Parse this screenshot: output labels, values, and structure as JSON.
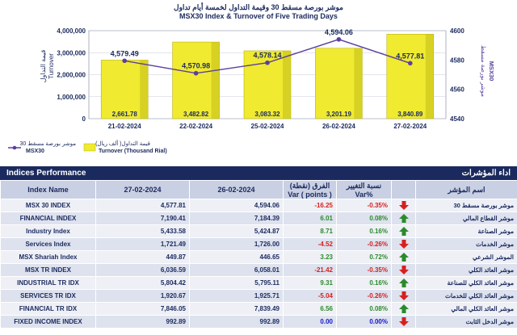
{
  "chart_data": {
    "type": "bar+line",
    "title_ar": "موشر بورصة مسقط 30 وقيمة التداول لخمسة أيام تداول",
    "title": "MSX30 Index & Turnover of Five Trading Days",
    "categories": [
      "21-02-2024",
      "22-02-2024",
      "25-02-2024",
      "26-02-2024",
      "27-02-2024"
    ],
    "bar_series": {
      "name_ar": "قيمة التداول( ألف ريال)",
      "name": "Turnover (Thousand Rial)",
      "values": [
        2661.78,
        3482.82,
        3083.32,
        3201.19,
        3840.89
      ],
      "labels": [
        "2,661.78",
        "3,482.82",
        "3,083.32",
        "3,201.19",
        "3,840.89"
      ],
      "color": "#f0ea30"
    },
    "line_series": {
      "name_ar": "موشر بورصة مسقط 30",
      "name": "MSX30",
      "values": [
        4579.49,
        4570.98,
        4578.14,
        4594.06,
        4577.81
      ],
      "labels": [
        "4,579.49",
        "4,570.98",
        "4,578.14",
        "4,594.06",
        "4,577.81"
      ],
      "color": "#5b3f9e"
    },
    "left_axis": {
      "label_ar": "قيمة التداول",
      "label": "Turnover",
      "range": [
        0,
        4000000
      ],
      "ticks": [
        0,
        1000000,
        2000000,
        3000000,
        4000000
      ],
      "tick_labels": [
        "0",
        "1,000,000",
        "2,000,000",
        "3,000,000",
        "4,000,000"
      ]
    },
    "right_axis": {
      "label_ar": "موشر بورصة مسقط",
      "label": "MSX30",
      "range": [
        4540,
        4600
      ],
      "ticks": [
        4540,
        4560,
        4580,
        4600
      ],
      "tick_labels": [
        "4540",
        "4560",
        "4580",
        "4600"
      ]
    },
    "grid": true,
    "legend": "bottom-left"
  },
  "table": {
    "title_en": "Indices Performance",
    "title_ar": "اداء المؤشرات",
    "headers": {
      "name": "Index Name",
      "date1": "27-02-2024",
      "date2": "26-02-2024",
      "var_ar": "الفرق (نقطة)",
      "var_en": "Var ( points )",
      "pct_ar": "نسبة التغيير",
      "pct_en": "Var%",
      "name_ar": "اسم المؤشر"
    },
    "rows": [
      {
        "name": "MSX 30 INDEX",
        "v1": "4,577.81",
        "v2": "4,594.06",
        "var": "-16.25",
        "pct": "-0.35%",
        "dir": "down",
        "name_ar": "موشر بورصة مسقط 30"
      },
      {
        "name": "FINANCIAL INDEX",
        "v1": "7,190.41",
        "v2": "7,184.39",
        "var": "6.01",
        "pct": "0.08%",
        "dir": "up",
        "name_ar": "موشر القطاع المالي"
      },
      {
        "name": "Industry Index",
        "v1": "5,433.58",
        "v2": "5,424.87",
        "var": "8.71",
        "pct": "0.16%",
        "dir": "up",
        "name_ar": "موشر الصناعة"
      },
      {
        "name": "Services Index",
        "v1": "1,721.49",
        "v2": "1,726.00",
        "var": "-4.52",
        "pct": "-0.26%",
        "dir": "down",
        "name_ar": "موشر الخدمات"
      },
      {
        "name": "MSX Shariah Index",
        "v1": "449.87",
        "v2": "446.65",
        "var": "3.23",
        "pct": "0.72%",
        "dir": "up",
        "name_ar": "الموشر الشرعي"
      },
      {
        "name": "MSX TR INDEX",
        "v1": "6,036.59",
        "v2": "6,058.01",
        "var": "-21.42",
        "pct": "-0.35%",
        "dir": "down",
        "name_ar": "موشر العائد الكلي"
      },
      {
        "name": "INDUSTRIAL TR IDX",
        "v1": "5,804.42",
        "v2": "5,795.11",
        "var": "9.31",
        "pct": "0.16%",
        "dir": "up",
        "name_ar": "موشر العائد الكلي للصناعة"
      },
      {
        "name": "SERVICES TR IDX",
        "v1": "1,920.67",
        "v2": "1,925.71",
        "var": "-5.04",
        "pct": "-0.26%",
        "dir": "down",
        "name_ar": "موشر العائد الكلي للخدمات"
      },
      {
        "name": "FINANCIAL TR IDX",
        "v1": "7,846.05",
        "v2": "7,839.49",
        "var": "6.56",
        "pct": "0.08%",
        "dir": "up",
        "name_ar": "موشر العائد الكلي المالي"
      },
      {
        "name": "FIXED INCOME INDEX",
        "v1": "992.89",
        "v2": "992.89",
        "var": "0.00",
        "pct": "0.00%",
        "dir": "down",
        "name_ar": "موشر الدخل الثابت"
      }
    ]
  }
}
